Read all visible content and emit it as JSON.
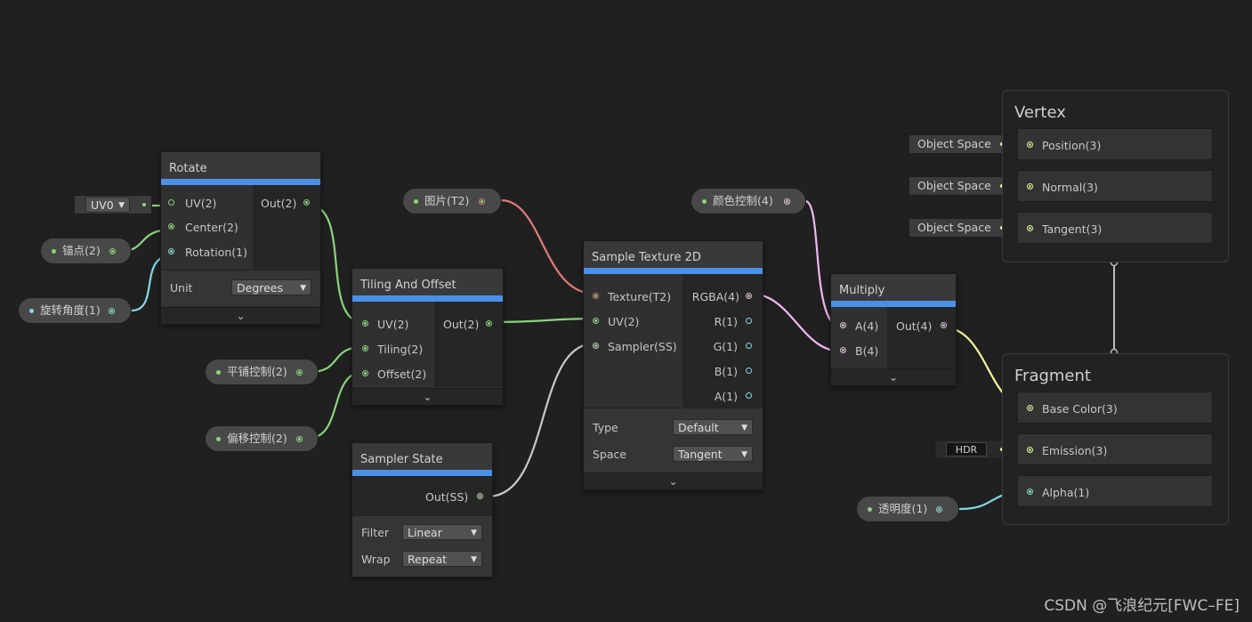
{
  "colors": {
    "background": "#202020",
    "header_bar": "#4a90e8",
    "port_vector": "#8bd47e",
    "port_texture": "#e07b7b",
    "port_sampler": "#c8c8c8",
    "port_float": "#84d7e6",
    "port_vector4": "#f3b9f3",
    "port_vector3": "#f3f39b"
  },
  "nodes": {
    "rotate": {
      "title": "Rotate",
      "inputs": [
        "UV(2)",
        "Center(2)",
        "Rotation(1)"
      ],
      "outputs": [
        "Out(2)"
      ],
      "unit_label": "Unit",
      "unit_value": "Degrees",
      "uv_field": "UV0"
    },
    "tiling": {
      "title": "Tiling And Offset",
      "inputs": [
        "UV(2)",
        "Tiling(2)",
        "Offset(2)"
      ],
      "outputs": [
        "Out(2)"
      ]
    },
    "sampler": {
      "title": "Sampler State",
      "outputs": [
        "Out(SS)"
      ],
      "filter_label": "Filter",
      "filter_value": "Linear",
      "wrap_label": "Wrap",
      "wrap_value": "Repeat"
    },
    "sample_texture": {
      "title": "Sample Texture 2D",
      "inputs": [
        "Texture(T2)",
        "UV(2)",
        "Sampler(SS)"
      ],
      "outputs": [
        "RGBA(4)",
        "R(1)",
        "G(1)",
        "B(1)",
        "A(1)"
      ],
      "type_label": "Type",
      "type_value": "Default",
      "space_label": "Space",
      "space_value": "Tangent"
    },
    "multiply": {
      "title": "Multiply",
      "inputs": [
        "A(4)",
        "B(4)"
      ],
      "outputs": [
        "Out(4)"
      ]
    }
  },
  "properties": {
    "anchor": "锚点(2)",
    "rotation_angle": "旋转角度(1)",
    "tiling_control": "平铺控制(2)",
    "offset_control": "偏移控制(2)",
    "texture": "图片(T2)",
    "color_control": "颜色控制(4)",
    "opacity": "透明度(1)"
  },
  "vertex": {
    "title": "Vertex",
    "blocks": [
      "Position(3)",
      "Normal(3)",
      "Tangent(3)"
    ],
    "space_fields": [
      "Object Space",
      "Object Space",
      "Object Space"
    ]
  },
  "fragment": {
    "title": "Fragment",
    "blocks": [
      "Base Color(3)",
      "Emission(3)",
      "Alpha(1)"
    ],
    "hdr_label": "HDR"
  },
  "expander_glyph": "⌄",
  "dropdown_arrow": "▼",
  "watermark": "CSDN @飞浪纪元[FWC–FE]"
}
